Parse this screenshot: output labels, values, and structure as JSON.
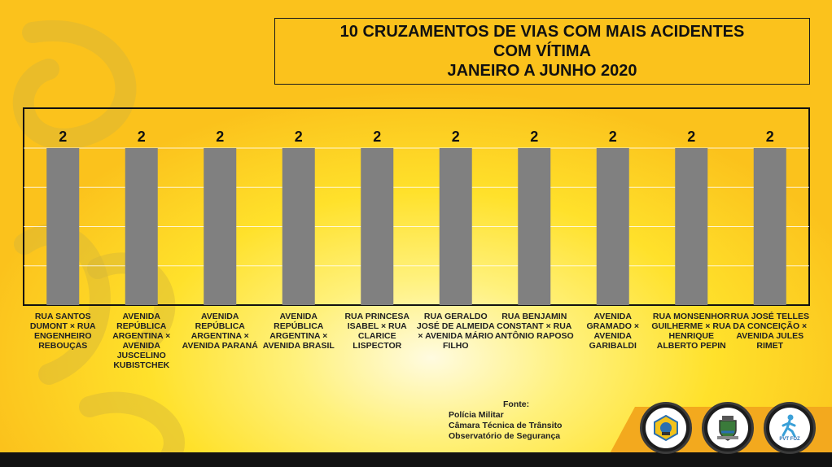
{
  "title_lines": [
    "10 CRUZAMENTOS DE VIAS COM MAIS ACIDENTES",
    "COM VÍTIMA",
    "JANEIRO A JUNHO 2020"
  ],
  "chart_data": {
    "type": "bar",
    "categories": [
      "RUA SANTOS DUMONT × RUA ENGENHEIRO REBOUÇAS",
      "AVENIDA REPÚBLICA ARGENTINA × AVENIDA JUSCELINO KUBISTCHEK",
      "AVENIDA REPÚBLICA ARGENTINA × AVENIDA PARANÁ",
      "AVENIDA REPÚBLICA ARGENTINA × AVENIDA BRASIL",
      "RUA PRINCESA ISABEL × RUA CLARICE LISPECTOR",
      "RUA GERALDO JOSÉ DE ALMEIDA × AVENIDA MÁRIO FILHO",
      "RUA BENJAMIN CONSTANT × RUA ANTÔNIO RAPOSO",
      "AVENIDA GRAMADO × AVENIDA GARIBALDI",
      "RUA MONSENHOR GUILHERME × RUA HENRIQUE ALBERTO PEPIN",
      "RUA JOSÉ TELLES DA CONCEIÇÃO × AVENIDA JULES RIMET"
    ],
    "values": [
      2,
      2,
      2,
      2,
      2,
      2,
      2,
      2,
      2,
      2
    ],
    "data_labels": [
      "2",
      "2",
      "2",
      "2",
      "2",
      "2",
      "2",
      "2",
      "2",
      "2"
    ],
    "ylim": [
      0,
      2
    ],
    "grid": true,
    "bar_color": "#808080"
  },
  "source": {
    "title": "Fonte:",
    "lines": [
      "Polícia Militar",
      "Câmara Técnica de Trânsito",
      "Observatório de Segurança"
    ]
  },
  "logos": [
    {
      "icon": "city-emblem-icon"
    },
    {
      "icon": "coat-of-arms-icon"
    },
    {
      "icon": "pedestrian-icon",
      "caption": "PVT FOZ"
    }
  ],
  "colors": {
    "background": "#ffe12b",
    "bar": "#808080",
    "frame": "#111111"
  }
}
